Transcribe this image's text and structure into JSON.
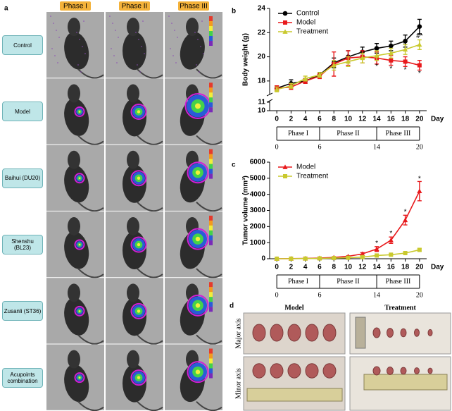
{
  "panel_a": {
    "label": "a",
    "phases": [
      "Phase I",
      "Phase II",
      "Phase III"
    ],
    "groups": [
      "Control",
      "Model",
      "Baihui (DU20)",
      "Shenshu (BL23)",
      "Zusanli (ST36)",
      "Acupoints combination"
    ]
  },
  "chart_data": [
    {
      "type": "line",
      "panel_label": "b",
      "ylabel": "Body weight (g)",
      "xlabel": "Day",
      "x": [
        0,
        2,
        4,
        6,
        8,
        10,
        12,
        14,
        16,
        18,
        20
      ],
      "xlim": [
        -1,
        21
      ],
      "xticks": [
        0,
        2,
        4,
        6,
        8,
        10,
        12,
        14,
        16,
        18,
        20
      ],
      "ylim": [
        10,
        24
      ],
      "axis_break": [
        11,
        17
      ],
      "yticks": [
        10,
        11,
        18,
        20,
        22,
        24
      ],
      "grid": false,
      "legend": "upper left",
      "series": [
        {
          "name": "Control",
          "color": "#000000",
          "marker": "circle",
          "values": [
            17.4,
            17.8,
            18.0,
            18.5,
            19.5,
            20.0,
            20.4,
            20.7,
            20.9,
            21.3,
            22.5
          ],
          "errors": [
            0.2,
            0.3,
            0.2,
            0.2,
            0.4,
            0.5,
            0.4,
            0.4,
            0.4,
            0.5,
            0.6
          ]
        },
        {
          "name": "Model",
          "color": "#e8191c",
          "marker": "square",
          "values": [
            17.4,
            17.5,
            18.0,
            18.4,
            19.4,
            19.9,
            20.0,
            19.9,
            19.7,
            19.6,
            19.3
          ],
          "errors": [
            0.2,
            0.2,
            0.2,
            0.2,
            1.0,
            0.6,
            0.5,
            0.5,
            0.4,
            0.4,
            0.4
          ]
        },
        {
          "name": "Treatment",
          "color": "#c9c92e",
          "marker": "triangle",
          "values": [
            17.3,
            17.6,
            18.2,
            18.5,
            19.3,
            19.6,
            19.9,
            20.1,
            20.3,
            20.6,
            21.0
          ],
          "errors": [
            0.2,
            0.2,
            0.2,
            0.2,
            0.4,
            0.4,
            0.4,
            0.4,
            0.4,
            0.4,
            0.4
          ]
        }
      ],
      "annotations": [
        {
          "text": "*",
          "x": 14,
          "y": 19.2
        },
        {
          "text": "*",
          "x": 16,
          "y": 19.0
        },
        {
          "text": "*",
          "x": 18,
          "y": 18.9
        },
        {
          "text": "*",
          "x": 20,
          "y": 18.6
        },
        {
          "text": "#",
          "x": 18,
          "y": 21.2
        },
        {
          "text": "#*",
          "x": 20,
          "y": 21.7
        }
      ],
      "phases": [
        "Phase I",
        "Phase II",
        "Phase III"
      ],
      "phase_ticks": [
        0,
        6,
        14,
        20
      ]
    },
    {
      "type": "line",
      "panel_label": "c",
      "ylabel": "Tumor volume (mm³)",
      "xlabel": "Day",
      "x": [
        0,
        2,
        4,
        6,
        8,
        10,
        12,
        14,
        16,
        18,
        20
      ],
      "xlim": [
        -1,
        21
      ],
      "xticks": [
        0,
        2,
        4,
        6,
        8,
        10,
        12,
        14,
        16,
        18,
        20
      ],
      "ylim": [
        0,
        6000
      ],
      "yticks": [
        0,
        1000,
        2000,
        3000,
        4000,
        5000,
        6000
      ],
      "grid": false,
      "legend": "upper left",
      "series": [
        {
          "name": "Model",
          "color": "#e8191c",
          "marker": "triangle",
          "values": [
            0,
            10,
            20,
            40,
            80,
            150,
            300,
            600,
            1150,
            2400,
            4200
          ],
          "errors": [
            0,
            5,
            10,
            15,
            20,
            40,
            80,
            150,
            200,
            300,
            600
          ]
        },
        {
          "name": "Treatment",
          "color": "#c9c92e",
          "marker": "square",
          "values": [
            0,
            5,
            10,
            20,
            40,
            60,
            100,
            200,
            250,
            350,
            550
          ],
          "errors": [
            0,
            3,
            5,
            5,
            10,
            10,
            20,
            30,
            40,
            50,
            80
          ]
        }
      ],
      "annotations": [
        {
          "text": "*",
          "x": 14,
          "y": 950
        },
        {
          "text": "*",
          "x": 16,
          "y": 1550
        },
        {
          "text": "*",
          "x": 18,
          "y": 2900
        },
        {
          "text": "*",
          "x": 20,
          "y": 4950
        }
      ],
      "phases": [
        "Phase I",
        "Phase II",
        "Phase III"
      ],
      "phase_ticks": [
        0,
        6,
        14,
        20
      ]
    }
  ],
  "panel_d": {
    "label": "d",
    "columns": [
      "Model",
      "Treatment"
    ],
    "rows": [
      "Major axis",
      "Minor axis"
    ]
  }
}
